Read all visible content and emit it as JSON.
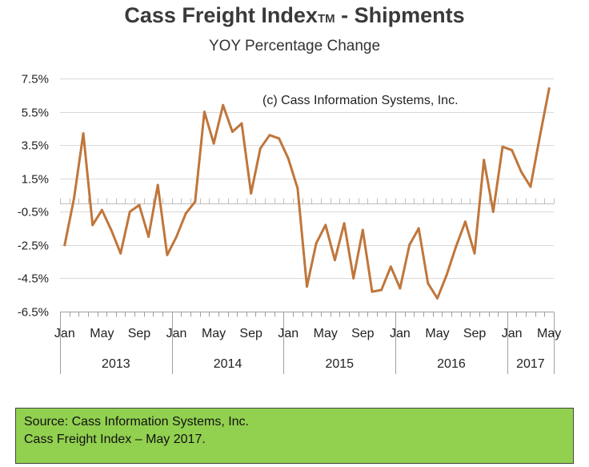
{
  "title": {
    "main": "Cass Freight Index",
    "tm": "TM",
    "suffix": " - Shipments",
    "subtitle": "YOY Percentage Change"
  },
  "copyright": "(c) Cass Information Systems, Inc.",
  "source": {
    "line1": "Source: Cass Information Systems, Inc.",
    "line2": "Cass Freight Index – May 2017."
  },
  "colors": {
    "line": "#c0763b",
    "grid": "#d9d9d9",
    "zero_line": "#bfbfbf",
    "axis": "#a0a0a0",
    "source_bg": "#92d050"
  },
  "chart_data": {
    "type": "line",
    "title": "Cass Freight Index - Shipments",
    "subtitle": "YOY Percentage Change",
    "ylim": [
      -6.5,
      7.5
    ],
    "yticks": [
      "7.5%",
      "5.5%",
      "3.5%",
      "1.5%",
      "-0.5%",
      "-2.5%",
      "-4.5%",
      "-6.5%"
    ],
    "ytick_values": [
      7.5,
      5.5,
      3.5,
      1.5,
      -0.5,
      -2.5,
      -4.5,
      -6.5
    ],
    "grid": true,
    "x_tick_labels": [
      {
        "index": 0,
        "label": "Jan"
      },
      {
        "index": 4,
        "label": "May"
      },
      {
        "index": 8,
        "label": "Sep"
      },
      {
        "index": 12,
        "label": "Jan"
      },
      {
        "index": 16,
        "label": "May"
      },
      {
        "index": 20,
        "label": "Sep"
      },
      {
        "index": 24,
        "label": "Jan"
      },
      {
        "index": 28,
        "label": "May"
      },
      {
        "index": 32,
        "label": "Sep"
      },
      {
        "index": 36,
        "label": "Jan"
      },
      {
        "index": 40,
        "label": "May"
      },
      {
        "index": 44,
        "label": "Sep"
      },
      {
        "index": 48,
        "label": "Jan"
      },
      {
        "index": 52,
        "label": "May"
      }
    ],
    "years": [
      {
        "label": "2013",
        "start": 0,
        "end": 11
      },
      {
        "label": "2014",
        "start": 12,
        "end": 23
      },
      {
        "label": "2015",
        "start": 24,
        "end": 35
      },
      {
        "label": "2016",
        "start": 36,
        "end": 47
      },
      {
        "label": "2017",
        "start": 48,
        "end": 52
      }
    ],
    "series": [
      {
        "x": [
          "2013-01",
          "2013-02",
          "2013-03",
          "2013-04",
          "2013-05",
          "2013-06",
          "2013-07",
          "2013-08",
          "2013-09",
          "2013-10",
          "2013-11",
          "2013-12",
          "2014-01",
          "2014-02",
          "2014-03",
          "2014-04",
          "2014-05",
          "2014-06",
          "2014-07",
          "2014-08",
          "2014-09",
          "2014-10",
          "2014-11",
          "2014-12",
          "2015-01",
          "2015-02",
          "2015-03",
          "2015-04",
          "2015-05",
          "2015-06",
          "2015-07",
          "2015-08",
          "2015-09",
          "2015-10",
          "2015-11",
          "2015-12",
          "2016-01",
          "2016-02",
          "2016-03",
          "2016-04",
          "2016-05",
          "2016-06",
          "2016-07",
          "2016-08",
          "2016-09",
          "2016-10",
          "2016-11",
          "2016-12",
          "2017-01",
          "2017-02",
          "2017-03",
          "2017-04",
          "2017-05"
        ],
        "values": [
          -2.5,
          0.3,
          4.2,
          -1.3,
          -0.4,
          -1.6,
          -3.0,
          -0.5,
          -0.1,
          -2.0,
          1.1,
          -3.1,
          -2.0,
          -0.6,
          0.1,
          5.5,
          3.6,
          5.9,
          4.3,
          4.8,
          0.6,
          3.3,
          4.1,
          3.9,
          2.7,
          0.9,
          -5.0,
          -2.4,
          -1.3,
          -3.4,
          -1.2,
          -4.5,
          -1.6,
          -5.3,
          -5.2,
          -3.8,
          -5.1,
          -2.5,
          -1.5,
          -4.8,
          -5.7,
          -4.3,
          -2.6,
          -1.1,
          -3.0,
          2.6,
          -0.5,
          3.4,
          3.2,
          1.9,
          1.0,
          4.0,
          6.9
        ]
      }
    ]
  }
}
